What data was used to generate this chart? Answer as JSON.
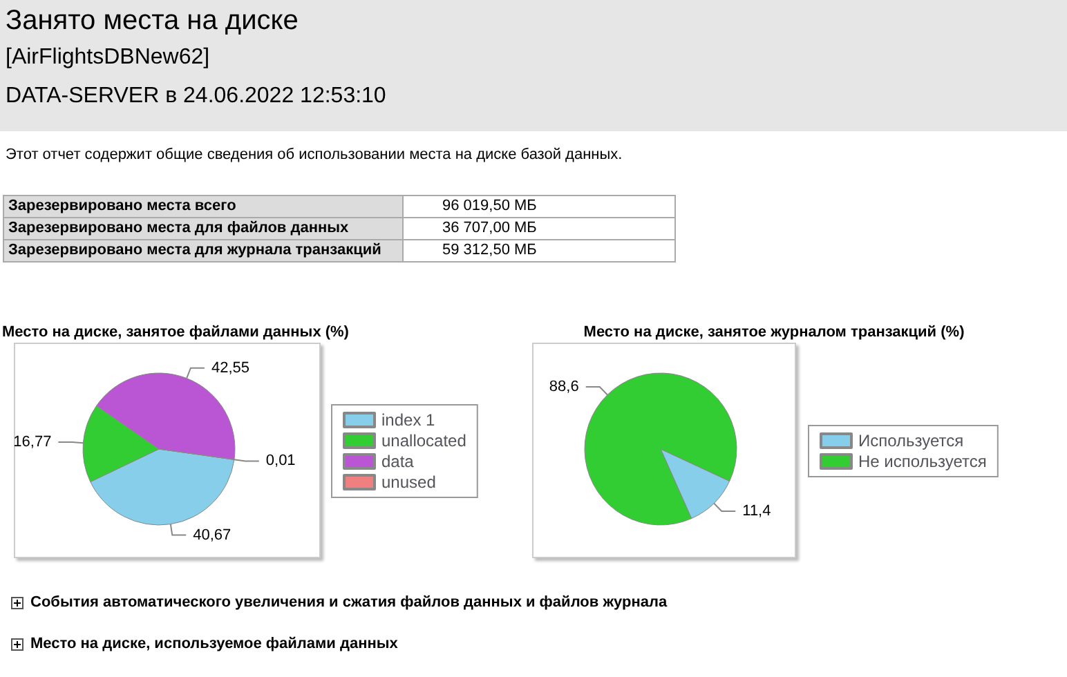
{
  "chart_data": [
    {
      "type": "other",
      "title": "Занято места на диске",
      "subtitle": "[AirFlightsDBNew62]\nDATA-SERVER в 24.06.2022 12:53:10",
      "annotations": [
        "Этот отчет содержит общие сведения об использовании места на диске базой данных.",
        "Зарезервировано места всего",
        "96 019,50 МБ",
        "Зарезервировано места для файлов данных",
        "36 707,00 МБ",
        "Зарезервировано места для журнала транзакций",
        "59 312,50 МБ",
        "События автоматического увеличения и сжатия файлов данных и файлов журнала",
        "Место на диске, используемое файлами данных"
      ]
    },
    {
      "type": "pie",
      "title": "Место на диске, занятое файлами данных (%)",
      "categories": [
        "index 1",
        "unallocated",
        "data",
        "unused"
      ],
      "values": [
        40.67,
        16.77,
        42.55,
        0.01
      ],
      "value_labels": [
        "40,67",
        "16,77",
        "42,55",
        "0,01"
      ],
      "colors": [
        "#87ceeb",
        "#32cd32",
        "#ba55d3",
        "#f08080"
      ],
      "legend": "right"
    },
    {
      "type": "pie",
      "title": "Место на диске, занятое журналом транзакций (%)",
      "categories": [
        "Используется",
        "Не используется"
      ],
      "values": [
        11.4,
        88.6
      ],
      "value_labels": [
        "11,4",
        "88,6"
      ],
      "colors": [
        "#87ceeb",
        "#32cd32"
      ],
      "legend": "right"
    }
  ]
}
